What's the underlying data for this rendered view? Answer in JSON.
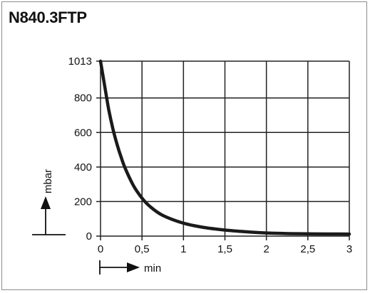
{
  "title": "N840.3FTP",
  "chart_data": {
    "type": "line",
    "xlabel": "min",
    "ylabel": "mbar",
    "xlim": [
      0,
      3
    ],
    "ylim": [
      0,
      1013
    ],
    "xticks": [
      0,
      0.5,
      1,
      1.5,
      2,
      2.5,
      3
    ],
    "xtick_labels": [
      "0",
      "0,5",
      "1",
      "1,5",
      "2",
      "2,5",
      "3"
    ],
    "yticks": [
      0,
      200,
      400,
      600,
      800,
      1013
    ],
    "ytick_labels": [
      "0",
      "200",
      "400",
      "600",
      "800",
      "1013"
    ],
    "grid": true,
    "series": [
      {
        "x": [
          0.0,
          0.05,
          0.1,
          0.15,
          0.2,
          0.25,
          0.3,
          0.4,
          0.5,
          0.6,
          0.75,
          1.0,
          1.25,
          1.5,
          1.75,
          2.0,
          2.5,
          3.0
        ],
        "y": [
          1013,
          870,
          730,
          620,
          530,
          455,
          390,
          290,
          220,
          170,
          120,
          75,
          50,
          35,
          25,
          18,
          13,
          12
        ]
      }
    ]
  }
}
